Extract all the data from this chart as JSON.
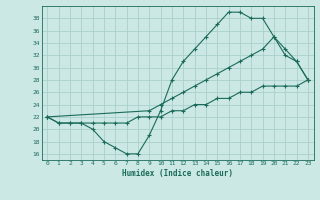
{
  "xlabel": "Humidex (Indice chaleur)",
  "bg_color": "#cce8e4",
  "grid_color": "#aacfca",
  "line_color": "#1a6b5a",
  "xlim": [
    -0.5,
    23.5
  ],
  "ylim": [
    15,
    40
  ],
  "yticks": [
    16,
    18,
    20,
    22,
    24,
    26,
    28,
    30,
    32,
    34,
    36,
    38
  ],
  "xticks": [
    0,
    1,
    2,
    3,
    4,
    5,
    6,
    7,
    8,
    9,
    10,
    11,
    12,
    13,
    14,
    15,
    16,
    17,
    18,
    19,
    20,
    21,
    22,
    23
  ],
  "curve1_x": [
    0,
    1,
    2,
    3,
    4,
    5,
    6,
    7,
    8,
    9,
    10,
    11,
    12,
    13,
    14,
    15,
    16,
    17,
    18,
    19,
    20,
    21,
    22,
    23
  ],
  "curve1_y": [
    22,
    21,
    21,
    21,
    20,
    18,
    17,
    16,
    16,
    19,
    23,
    28,
    31,
    33,
    35,
    37,
    39,
    39,
    38,
    38,
    35,
    32,
    31,
    28
  ],
  "curve2_x": [
    0,
    9,
    10,
    11,
    12,
    13,
    14,
    15,
    16,
    17,
    18,
    19,
    20,
    21,
    22,
    23
  ],
  "curve2_y": [
    22,
    23,
    24,
    25,
    26,
    27,
    28,
    29,
    30,
    31,
    32,
    33,
    35,
    33,
    31,
    28
  ],
  "curve3_x": [
    0,
    1,
    2,
    3,
    4,
    5,
    6,
    7,
    8,
    9,
    10,
    11,
    12,
    13,
    14,
    15,
    16,
    17,
    18,
    19,
    20,
    21,
    22,
    23
  ],
  "curve3_y": [
    22,
    21,
    21,
    21,
    21,
    21,
    21,
    21,
    22,
    22,
    22,
    23,
    23,
    24,
    24,
    25,
    25,
    26,
    26,
    27,
    27,
    27,
    27,
    28
  ]
}
